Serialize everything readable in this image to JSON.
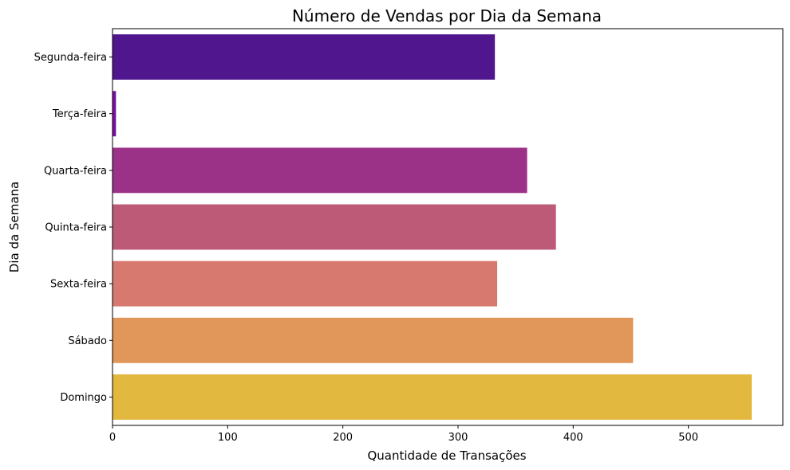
{
  "chart_data": {
    "type": "bar",
    "orientation": "horizontal",
    "title": "Número de Vendas por Dia da Semana",
    "xlabel": "Quantidade de Transações",
    "ylabel": "Dia da Semana",
    "categories": [
      "Segunda-feira",
      "Terça-feira",
      "Quarta-feira",
      "Quinta-feira",
      "Sexta-feira",
      "Sábado",
      "Domingo"
    ],
    "values": [
      332,
      3,
      360,
      385,
      334,
      452,
      555
    ],
    "colors": [
      "#4f168e",
      "#7b0fa3",
      "#9b3288",
      "#bd5a78",
      "#d7796e",
      "#e2975a",
      "#e3b83e"
    ],
    "xlim": [
      0,
      582
    ],
    "xticks": [
      0,
      100,
      200,
      300,
      400,
      500
    ],
    "grid": false,
    "legend": "none"
  }
}
